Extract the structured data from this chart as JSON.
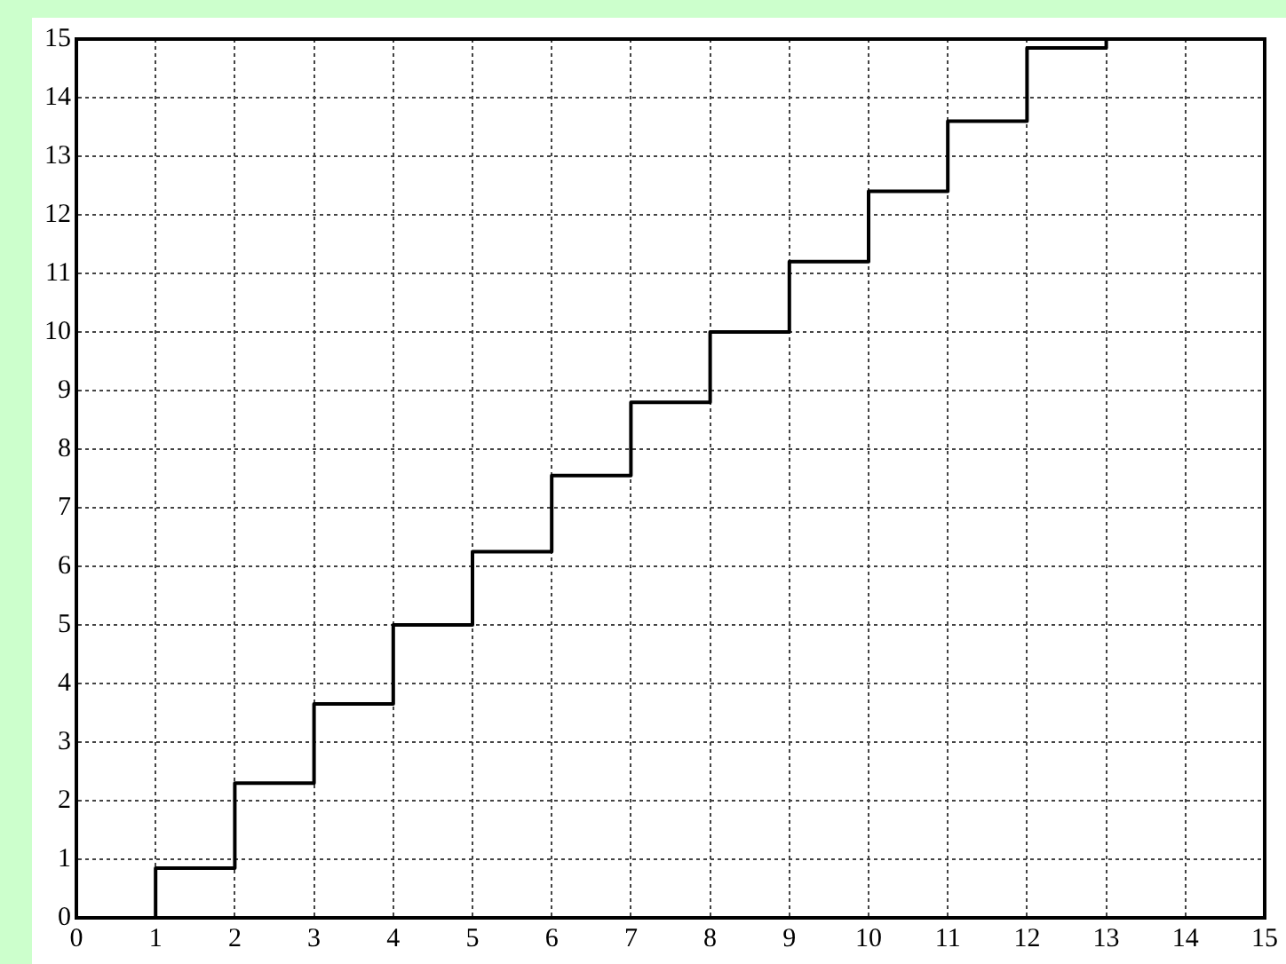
{
  "chart_data": {
    "type": "step",
    "x": [
      1,
      1,
      2,
      3,
      4,
      5,
      6,
      7,
      8,
      9,
      10,
      11,
      12,
      13
    ],
    "series": [
      {
        "color": "#000000",
        "values": [
          0,
          0.85,
          2.3,
          3.65,
          5,
          6.25,
          7.55,
          8.8,
          10,
          11.2,
          12.4,
          13.6,
          14.85,
          15
        ]
      }
    ],
    "xlim": [
      0,
      15
    ],
    "ylim": [
      0,
      15
    ],
    "xticks": [
      0,
      1,
      2,
      3,
      4,
      5,
      6,
      7,
      8,
      9,
      10,
      11,
      12,
      13,
      14,
      15
    ],
    "yticks": [
      0,
      1,
      2,
      3,
      4,
      5,
      6,
      7,
      8,
      9,
      10,
      11,
      12,
      13,
      14,
      15
    ],
    "grid": true,
    "legend": false,
    "marker": "none",
    "line_style": "solid"
  }
}
